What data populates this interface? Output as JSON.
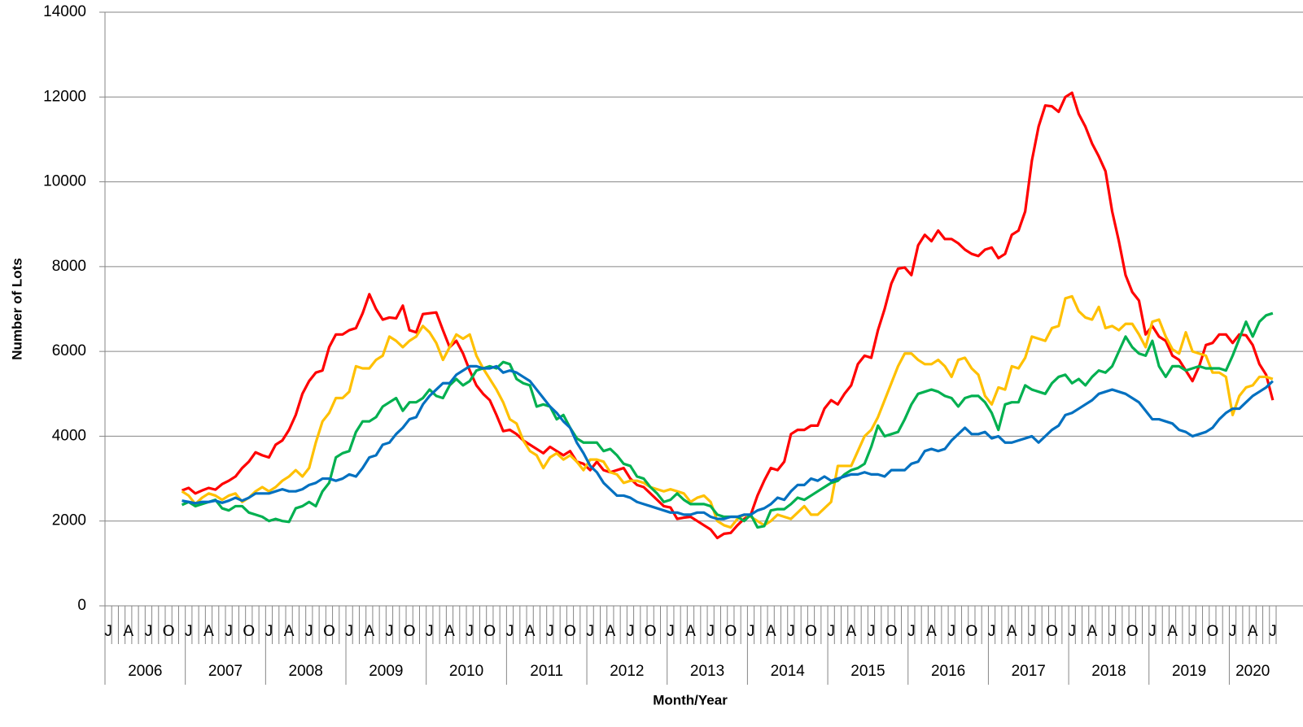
{
  "chart_data": {
    "type": "line",
    "xlabel": "Month/Year",
    "ylabel": "Number of Lots",
    "categories": [
      "J",
      null,
      null,
      "A",
      null,
      null,
      "J",
      null,
      null,
      "O",
      null,
      null,
      "J",
      null,
      null,
      "A",
      null,
      null,
      "J",
      null,
      null,
      "O",
      null,
      null,
      "J",
      null,
      null,
      "A",
      null,
      null,
      "J",
      null,
      null,
      "O",
      null,
      null,
      "J",
      null,
      null,
      "A",
      null,
      null,
      "J",
      null,
      null,
      "O",
      null,
      null,
      "J",
      null,
      null,
      "A",
      null,
      null,
      "J",
      null,
      null,
      "O",
      null,
      null,
      "J",
      null,
      null,
      "A",
      null,
      null,
      "J",
      null,
      null,
      "O",
      null,
      null,
      "J",
      null,
      null,
      "A",
      null,
      null,
      "J",
      null,
      null,
      "O",
      null,
      null,
      "J",
      null,
      null,
      "A",
      null,
      null,
      "J",
      null,
      null,
      "O",
      null,
      null,
      "J",
      null,
      null,
      "A",
      null,
      null,
      "J",
      null,
      null,
      "O",
      null,
      null,
      "J",
      null,
      null,
      "A",
      null,
      null,
      "J",
      null,
      null,
      "O",
      null,
      null,
      "J",
      null,
      null,
      "A",
      null,
      null,
      "J",
      null,
      null,
      "O",
      null,
      null,
      "J",
      null,
      null,
      "A",
      null,
      null,
      "J",
      null,
      null,
      "O",
      null,
      null,
      "J",
      null,
      null,
      "A",
      null,
      null,
      "J",
      null,
      null,
      "O",
      null,
      null,
      "J",
      null,
      null,
      "A",
      null,
      null,
      "J",
      null,
      null,
      "O",
      null,
      null,
      "J",
      null,
      null,
      "A",
      null,
      null,
      "J"
    ],
    "years": [
      "2006",
      "2007",
      "2008",
      "2009",
      "2010",
      "2011",
      "2012",
      "2013",
      "2014",
      "2015",
      "2016",
      "2017",
      "2018",
      "2019",
      "2020"
    ],
    "ylim": [
      0,
      14000
    ],
    "yticks": [
      0,
      2000,
      4000,
      6000,
      8000,
      10000,
      12000,
      14000
    ],
    "grid": true,
    "series": [
      {
        "color": "#ff0000",
        "values": [
          null,
          null,
          null,
          null,
          null,
          null,
          null,
          null,
          null,
          null,
          null,
          2720,
          2780,
          2650,
          2720,
          2780,
          2740,
          2870,
          2950,
          3050,
          3250,
          3400,
          3620,
          3550,
          3500,
          3800,
          3900,
          4150,
          4500,
          5000,
          5300,
          5500,
          5550,
          6100,
          6400,
          6400,
          6500,
          6550,
          6900,
          7350,
          7000,
          6750,
          6800,
          6780,
          7080,
          6500,
          6450,
          6880,
          6900,
          6920,
          6500,
          6100,
          6250,
          5950,
          5550,
          5200,
          5000,
          4850,
          4500,
          4120,
          4150,
          4050,
          3900,
          3800,
          3700,
          3600,
          3750,
          3650,
          3550,
          3650,
          3400,
          3350,
          3200,
          3400,
          3200,
          3150,
          3200,
          3250,
          3000,
          2850,
          2800,
          2650,
          2500,
          2350,
          2320,
          2050,
          2080,
          2100,
          2000,
          1900,
          1800,
          1600,
          1700,
          1720,
          1900,
          2050,
          2150,
          2600,
          2950,
          3250,
          3200,
          3400,
          4050,
          4150,
          4150,
          4250,
          4250,
          4650,
          4850,
          4750,
          5000,
          5200,
          5700,
          5900,
          5850,
          6500,
          7000,
          7600,
          7950,
          7980,
          7800,
          8500,
          8750,
          8600,
          8850,
          8650,
          8650,
          8550,
          8400,
          8300,
          8250,
          8400,
          8450,
          8200,
          8300,
          8750,
          8850,
          9300,
          10500,
          11300,
          11800,
          11780,
          11650,
          12000,
          12100,
          11600,
          11300,
          10900,
          10600,
          10250,
          9300,
          8600,
          7800,
          7400,
          7200,
          6400,
          6600,
          6350,
          6250,
          5900,
          5800,
          5550,
          5300,
          5650,
          6150,
          6200,
          6400,
          6400,
          6200,
          6400,
          6380,
          6150,
          5700,
          5450,
          4850
        ]
      },
      {
        "color": "#ffc000",
        "values": [
          null,
          null,
          null,
          null,
          null,
          null,
          null,
          null,
          null,
          null,
          null,
          2700,
          2600,
          2400,
          2550,
          2650,
          2600,
          2500,
          2600,
          2650,
          2450,
          2550,
          2700,
          2800,
          2700,
          2800,
          2950,
          3050,
          3200,
          3050,
          3250,
          3850,
          4350,
          4550,
          4900,
          4900,
          5050,
          5650,
          5600,
          5600,
          5800,
          5900,
          6350,
          6250,
          6100,
          6250,
          6350,
          6600,
          6450,
          6200,
          5800,
          6100,
          6400,
          6300,
          6400,
          5900,
          5600,
          5350,
          5100,
          4800,
          4400,
          4300,
          3900,
          3650,
          3550,
          3250,
          3500,
          3600,
          3450,
          3550,
          3400,
          3200,
          3450,
          3450,
          3400,
          3150,
          3100,
          2900,
          2950,
          2950,
          2900,
          2800,
          2750,
          2700,
          2750,
          2700,
          2650,
          2450,
          2550,
          2600,
          2450,
          2000,
          1900,
          1850,
          2050,
          2150,
          2100,
          2000,
          1900,
          2000,
          2150,
          2100,
          2050,
          2200,
          2350,
          2150,
          2150,
          2300,
          2450,
          3300,
          3300,
          3300,
          3650,
          4000,
          4150,
          4450,
          4850,
          5250,
          5650,
          5950,
          5950,
          5800,
          5700,
          5700,
          5800,
          5650,
          5400,
          5800,
          5850,
          5600,
          5450,
          4950,
          4750,
          5150,
          5100,
          5650,
          5600,
          5850,
          6350,
          6300,
          6250,
          6550,
          6600,
          7250,
          7300,
          6950,
          6800,
          6750,
          7050,
          6550,
          6600,
          6500,
          6650,
          6650,
          6400,
          6100,
          6700,
          6750,
          6350,
          6050,
          5950,
          6450,
          6000,
          5950,
          5900,
          5500,
          5500,
          5400,
          4500,
          4950,
          5150,
          5200,
          5400,
          5400,
          5350
        ]
      },
      {
        "color": "#00b050",
        "values": [
          null,
          null,
          null,
          null,
          null,
          null,
          null,
          null,
          null,
          null,
          null,
          2380,
          2450,
          2350,
          2400,
          2450,
          2500,
          2300,
          2250,
          2350,
          2350,
          2200,
          2150,
          2100,
          2000,
          2050,
          2000,
          1980,
          2300,
          2350,
          2450,
          2350,
          2700,
          2900,
          3500,
          3600,
          3650,
          4100,
          4350,
          4350,
          4450,
          4700,
          4800,
          4900,
          4600,
          4800,
          4800,
          4900,
          5100,
          4950,
          4900,
          5200,
          5350,
          5200,
          5300,
          5550,
          5600,
          5650,
          5600,
          5750,
          5700,
          5350,
          5250,
          5200,
          4700,
          4750,
          4700,
          4400,
          4500,
          4200,
          3950,
          3850,
          3850,
          3850,
          3650,
          3700,
          3550,
          3350,
          3300,
          3050,
          3000,
          2800,
          2650,
          2450,
          2500,
          2650,
          2500,
          2400,
          2400,
          2400,
          2350,
          2150,
          2100,
          2100,
          2100,
          2000,
          2150,
          1850,
          1880,
          2250,
          2280,
          2280,
          2400,
          2550,
          2500,
          2600,
          2700,
          2800,
          2900,
          2950,
          3100,
          3200,
          3250,
          3350,
          3750,
          4250,
          4000,
          4050,
          4100,
          4400,
          4750,
          5000,
          5050,
          5100,
          5050,
          4950,
          4900,
          4700,
          4900,
          4950,
          4950,
          4800,
          4550,
          4150,
          4750,
          4800,
          4800,
          5200,
          5100,
          5050,
          5000,
          5250,
          5400,
          5450,
          5250,
          5350,
          5200,
          5400,
          5550,
          5500,
          5650,
          6000,
          6350,
          6100,
          5950,
          5900,
          6250,
          5650,
          5400,
          5650,
          5650,
          5550,
          5600,
          5650,
          5600,
          5600,
          5600,
          5550,
          5900,
          6300,
          6700,
          6350,
          6700,
          6850,
          6900
        ]
      },
      {
        "color": "#0070c0",
        "values": [
          null,
          null,
          null,
          null,
          null,
          null,
          null,
          null,
          null,
          null,
          null,
          2480,
          2450,
          2420,
          2450,
          2450,
          2480,
          2430,
          2480,
          2550,
          2480,
          2550,
          2650,
          2650,
          2650,
          2700,
          2750,
          2700,
          2700,
          2750,
          2850,
          2900,
          3000,
          3000,
          2950,
          3000,
          3100,
          3050,
          3250,
          3500,
          3550,
          3800,
          3850,
          4050,
          4200,
          4400,
          4450,
          4750,
          4950,
          5100,
          5250,
          5250,
          5450,
          5550,
          5650,
          5650,
          5600,
          5600,
          5650,
          5500,
          5550,
          5500,
          5400,
          5300,
          5100,
          4900,
          4700,
          4550,
          4350,
          4200,
          3850,
          3600,
          3300,
          3150,
          2900,
          2750,
          2600,
          2600,
          2550,
          2450,
          2400,
          2350,
          2300,
          2250,
          2200,
          2200,
          2150,
          2150,
          2200,
          2200,
          2100,
          2050,
          2050,
          2100,
          2100,
          2150,
          2150,
          2250,
          2300,
          2400,
          2550,
          2500,
          2700,
          2850,
          2850,
          3000,
          2950,
          3050,
          2950,
          3000,
          3050,
          3100,
          3100,
          3150,
          3100,
          3100,
          3050,
          3200,
          3200,
          3200,
          3350,
          3400,
          3650,
          3700,
          3650,
          3700,
          3900,
          4050,
          4200,
          4050,
          4050,
          4100,
          3950,
          4000,
          3850,
          3850,
          3900,
          3950,
          4000,
          3850,
          4000,
          4150,
          4250,
          4500,
          4550,
          4650,
          4750,
          4850,
          5000,
          5050,
          5100,
          5050,
          5000,
          4900,
          4800,
          4600,
          4400,
          4400,
          4350,
          4300,
          4150,
          4100,
          4000,
          4050,
          4100,
          4200,
          4400,
          4550,
          4650,
          4650,
          4800,
          4950,
          5050,
          5150,
          5300
        ]
      }
    ]
  }
}
